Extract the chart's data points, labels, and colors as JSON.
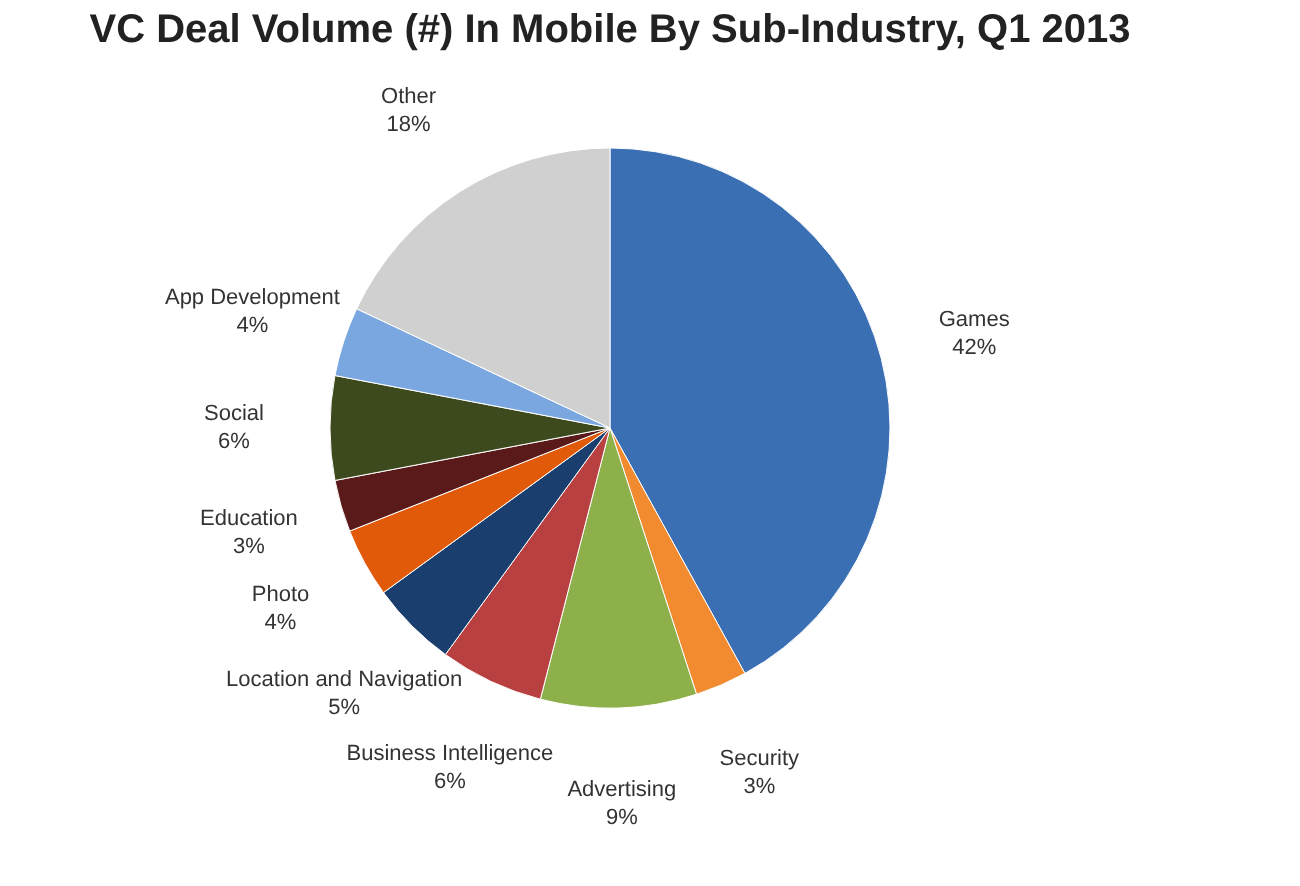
{
  "chart_data": {
    "type": "pie",
    "title": "VC Deal Volume (#) In Mobile By Sub-Industry, Q1 2013",
    "categories": [
      "Games",
      "Security",
      "Advertising",
      "Business Intelligence",
      "Location and Navigation",
      "Photo",
      "Education",
      "Social",
      "App Development",
      "Other"
    ],
    "values": [
      42,
      3,
      9,
      6,
      5,
      4,
      3,
      6,
      4,
      18
    ],
    "value_labels": [
      "42%",
      "3%",
      "9%",
      "6%",
      "5%",
      "4%",
      "3%",
      "6%",
      "4%",
      "18%"
    ],
    "colors": [
      "#3a6fb4",
      "#f28a30",
      "#8db04a",
      "#b94040",
      "#1a3e6e",
      "#e05a0a",
      "#5a1a1a",
      "#3d4a1e",
      "#7ba7e0",
      "#d0d0d0"
    ]
  }
}
